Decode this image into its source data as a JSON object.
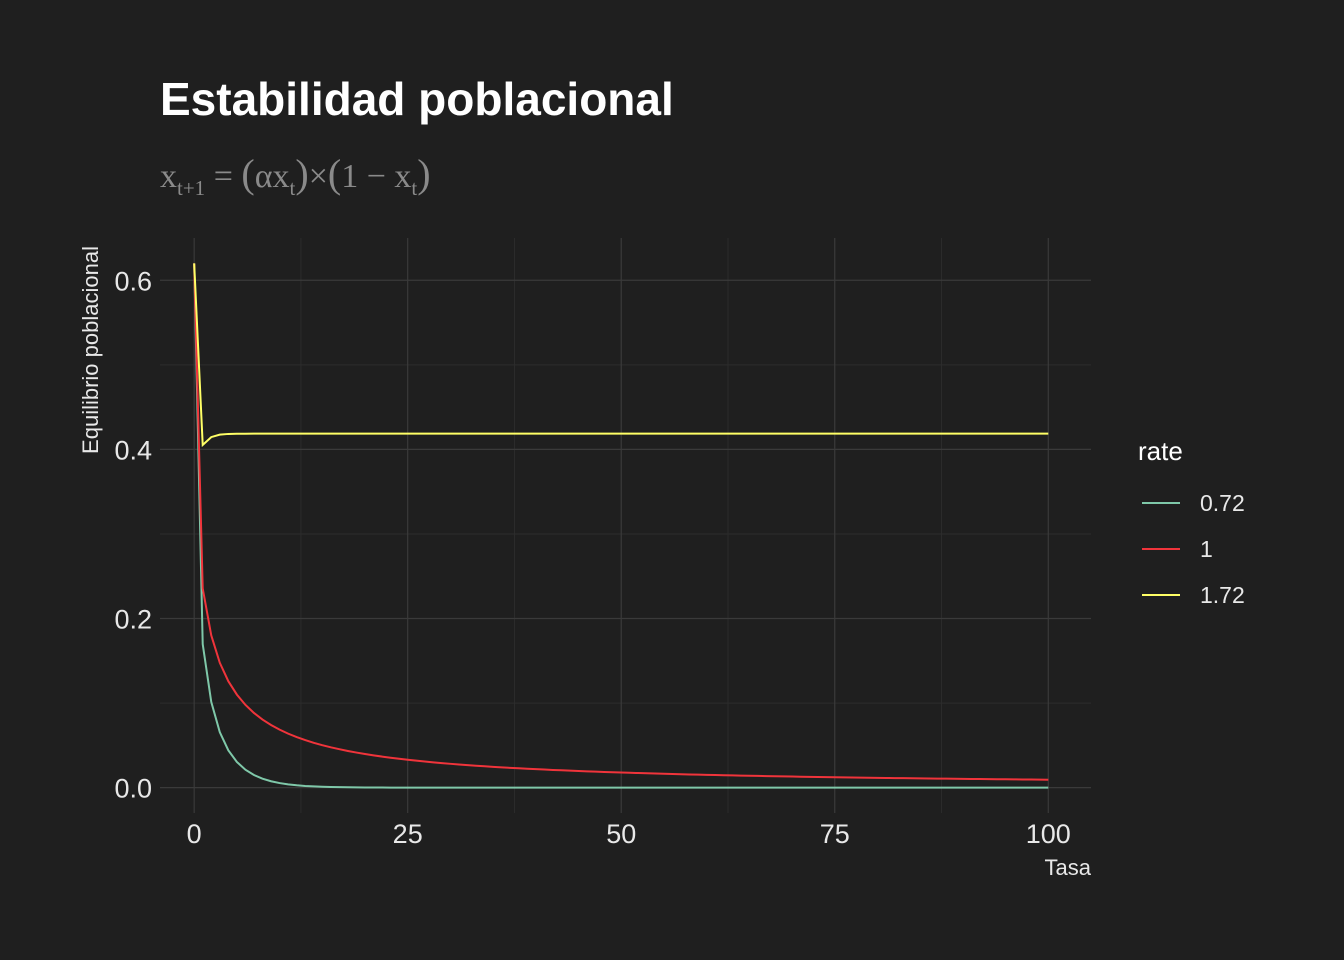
{
  "chart_data": {
    "type": "line",
    "title": "Estabilidad poblacional",
    "subtitle": {
      "lhs": "x",
      "lhs_sub": "t+1",
      "eq": "=",
      "alpha": "α",
      "x1": "x",
      "x1_sub": "t",
      "times": "×",
      "one": "1",
      "minus": "−",
      "x2": "x",
      "x2_sub": "t"
    },
    "xlabel": "Tasa",
    "ylabel": "Equilibrio poblacional",
    "xlim": [
      -4,
      105
    ],
    "ylim": [
      -0.03,
      0.65
    ],
    "x_ticks": [
      0,
      25,
      50,
      75,
      100
    ],
    "x_tick_labels": [
      "0",
      "25",
      "50",
      "75",
      "100"
    ],
    "y_ticks": [
      0.0,
      0.2,
      0.4,
      0.6
    ],
    "y_tick_labels": [
      "0.0",
      "0.2",
      "0.4",
      "0.6"
    ],
    "grid": true,
    "legend": {
      "title": "rate",
      "position": "right"
    },
    "x0": 0.62,
    "x_max": 100,
    "series": [
      {
        "name": "0.72",
        "rate": 0.72,
        "color": "#7fc8a9"
      },
      {
        "name": "1",
        "rate": 1,
        "color": "#f0343b"
      },
      {
        "name": "1.72",
        "rate": 1.72,
        "color": "#ffff66"
      }
    ]
  },
  "colors": {
    "background": "#1f1f1f",
    "grid_major": "#3a3a3a",
    "grid_minor": "#2c2c2c",
    "text": "#e8e8e8",
    "subtitle": "#8a8a8a"
  }
}
